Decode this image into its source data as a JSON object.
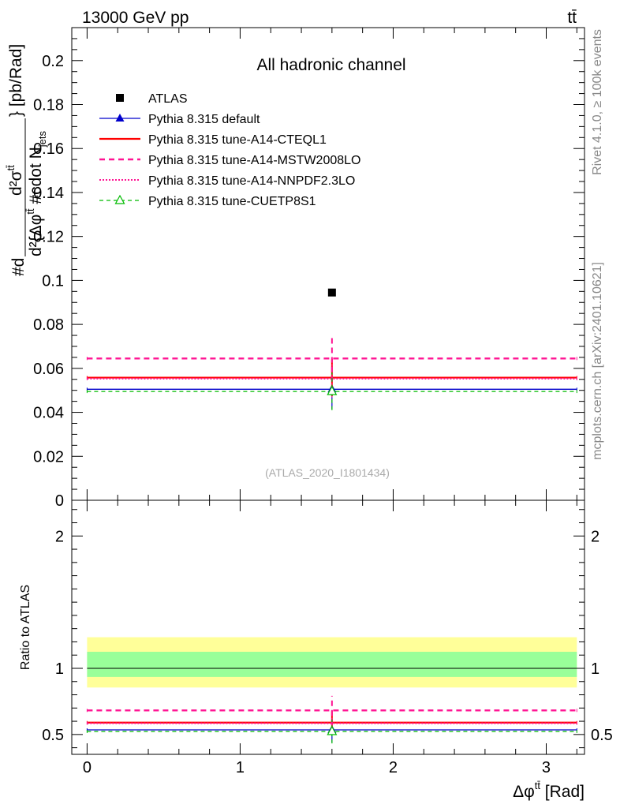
{
  "header": {
    "energy_label": "13000 GeV pp",
    "process_label": "tt̄",
    "side_rivet": "Rivet 4.1.0, ≥ 100k events",
    "side_mcplots": "mcplots.cern.ch [arXiv:2401.10621]"
  },
  "chart_data": [
    {
      "type": "line",
      "panel": "main",
      "title": "All hadronic channel",
      "watermark": "(ATLAS_2020_I1801434)",
      "ylabel": "#d d²σ^{tt̄} / d²{Δφ^{tt̄} #cdot N_jets} [pb/Rad]",
      "ylabel_parts": {
        "numer": "#d",
        "sigma": "d²σ",
        "sigma_sup": "tt̄",
        "brace": "} [pb/Rad]",
        "denom": "d²{Δφ",
        "denom_sup": "tt̄",
        "denom_tail": " #cdot N",
        "denom_sub": "jets"
      },
      "xlim": [
        -0.1,
        3.25
      ],
      "ylim": [
        0,
        0.215
      ],
      "yticks": [
        0,
        0.02,
        0.04,
        0.06,
        0.08,
        0.1,
        0.12,
        0.14,
        0.16,
        0.18,
        0.2
      ],
      "ytick_labels": [
        "0",
        "0.02",
        "0.04",
        "0.06",
        "0.08",
        "0.1",
        "0.12",
        "0.14",
        "0.16",
        "0.18",
        "0.2"
      ],
      "xbin": [
        0,
        3.2
      ],
      "xcenter": 1.6,
      "series": [
        {
          "name": "ATLAS",
          "value": 0.0945,
          "err": 0,
          "color": "#000000",
          "style": "marker-square"
        },
        {
          "name": "Pythia 8.315 default",
          "value": 0.0505,
          "err": 0.009,
          "color": "#0000cc",
          "style": "solid-triangle"
        },
        {
          "name": "Pythia 8.315 tune-A14-CTEQL1",
          "value": 0.0558,
          "err": 0.0085,
          "color": "#ff0000",
          "style": "solid-thick"
        },
        {
          "name": "Pythia 8.315 tune-A14-MSTW2008LO",
          "value": 0.0645,
          "err": 0.0105,
          "color": "#ff1493",
          "style": "dashed-thick"
        },
        {
          "name": "Pythia 8.315 tune-A14-NNPDF2.3LO",
          "value": 0.0553,
          "err": 0.0085,
          "color": "#ff1493",
          "style": "dotted"
        },
        {
          "name": "Pythia 8.315 tune-CUETP8S1",
          "value": 0.0495,
          "err": 0.0085,
          "color": "#00bb00",
          "style": "dashed-open-triangle"
        }
      ]
    },
    {
      "type": "line",
      "panel": "ratio",
      "ylabel": "Ratio to ATLAS",
      "xlabel": "Δφ^{tt̄} [Rad]",
      "xlabel_parts": {
        "main": "Δφ",
        "sup": "tt̄",
        "tail": " [Rad]"
      },
      "xlim": [
        -0.1,
        3.25
      ],
      "ylim": [
        0.35,
        2.27
      ],
      "yticks": [
        0.5,
        1,
        2
      ],
      "ytick_labels": [
        "0.5",
        "1",
        "2"
      ],
      "xticks": [
        0,
        1,
        2,
        3
      ],
      "xtick_labels": [
        "0",
        "1",
        "2",
        "3"
      ],
      "bands": [
        {
          "name": "total-uncertainty",
          "low": 0.855,
          "high": 1.235,
          "color": "#ffff99"
        },
        {
          "name": "stat-uncertainty",
          "low": 0.935,
          "high": 1.125,
          "color": "#99ff99"
        }
      ],
      "series": [
        {
          "name": "Pythia 8.315 default",
          "value": 0.535,
          "err": 0.095,
          "color": "#0000cc",
          "style": "solid-triangle"
        },
        {
          "name": "Pythia 8.315 tune-A14-CTEQL1",
          "value": 0.59,
          "err": 0.09,
          "color": "#ff0000",
          "style": "solid-thick"
        },
        {
          "name": "Pythia 8.315 tune-A14-MSTW2008LO",
          "value": 0.682,
          "err": 0.11,
          "color": "#ff1493",
          "style": "dashed-thick"
        },
        {
          "name": "Pythia 8.315 tune-A14-NNPDF2.3LO",
          "value": 0.585,
          "err": 0.09,
          "color": "#ff1493",
          "style": "dotted"
        },
        {
          "name": "Pythia 8.315 tune-CUETP8S1",
          "value": 0.523,
          "err": 0.09,
          "color": "#00bb00",
          "style": "dashed-open-triangle"
        }
      ]
    }
  ]
}
